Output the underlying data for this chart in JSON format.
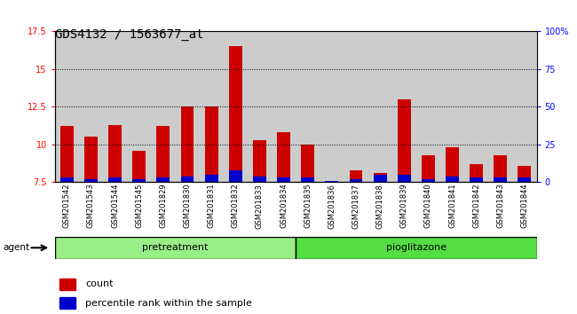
{
  "title": "GDS4132 / 1563677_at",
  "samples": [
    "GSM201542",
    "GSM201543",
    "GSM201544",
    "GSM201545",
    "GSM201829",
    "GSM201830",
    "GSM201831",
    "GSM201832",
    "GSM201833",
    "GSM201834",
    "GSM201835",
    "GSM201836",
    "GSM201837",
    "GSM201838",
    "GSM201839",
    "GSM201840",
    "GSM201841",
    "GSM201842",
    "GSM201843",
    "GSM201844"
  ],
  "count_values": [
    11.2,
    10.5,
    11.3,
    9.6,
    11.2,
    12.5,
    12.5,
    16.5,
    10.3,
    10.8,
    10.0,
    7.6,
    8.3,
    8.1,
    13.0,
    9.3,
    9.8,
    8.7,
    9.3,
    8.6
  ],
  "percentile_values": [
    3,
    2,
    3,
    2,
    3,
    4,
    5,
    8,
    4,
    3,
    3,
    1,
    2,
    5,
    5,
    2,
    4,
    3,
    3,
    3
  ],
  "ymin": 7.5,
  "ymax": 17.5,
  "yticks": [
    7.5,
    10.0,
    12.5,
    15.0,
    17.5
  ],
  "ytick_labels": [
    "7.5",
    "10",
    "12.5",
    "15",
    "17.5"
  ],
  "y2min": 0,
  "y2max": 100,
  "y2ticks": [
    0,
    25,
    50,
    75,
    100
  ],
  "y2tick_labels": [
    "0",
    "25",
    "50",
    "75",
    "100%"
  ],
  "n_pretreatment": 10,
  "n_pioglitazone": 10,
  "bar_color": "#cc0000",
  "percentile_color": "#0000cc",
  "pretreatment_color": "#99ee88",
  "pioglitazone_color": "#55dd44",
  "bar_width": 0.55,
  "col_bg_color": "#cccccc",
  "plot_bg_color": "#ffffff",
  "agent_label": "agent",
  "pretreatment_label": "pretreatment",
  "pioglitazone_label": "pioglitazone",
  "legend_count": "count",
  "legend_percentile": "percentile rank within the sample",
  "title_fontsize": 10,
  "tick_fontsize": 7,
  "label_fontsize": 8
}
